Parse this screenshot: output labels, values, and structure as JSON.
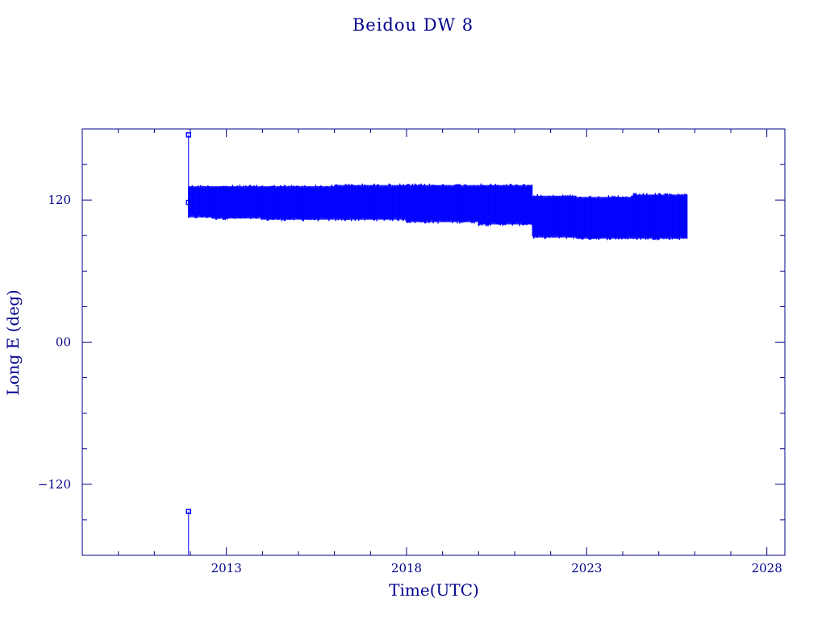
{
  "chart_data": {
    "type": "scatter",
    "title": "Beidou DW 8",
    "xlabel": "Time(UTC)",
    "ylabel": "Long E (deg)",
    "xlim": [
      2009,
      2028.5
    ],
    "ylim": [
      -180,
      180
    ],
    "xticks": [
      2013,
      2018,
      2023,
      2028
    ],
    "xtick_labels": [
      "2013",
      "2018",
      "2023",
      "2028"
    ],
    "yticks": [
      -120,
      0,
      120
    ],
    "ytick_labels": [
      "−120",
      "00",
      "120"
    ],
    "grid": false,
    "marker_color": "#0000ff",
    "series": [
      {
        "x": [
          2011.95,
          2011.95,
          2011.95
        ],
        "y": [
          -143,
          175,
          118
        ]
      }
    ],
    "bands": [
      {
        "x_start": 2011.95,
        "x_end": 2012.6,
        "y_low": 104,
        "y_high": 133
      },
      {
        "x_start": 2012.6,
        "x_end": 2014.0,
        "y_low": 103,
        "y_high": 133
      },
      {
        "x_start": 2014.0,
        "x_end": 2016.0,
        "y_low": 102,
        "y_high": 133
      },
      {
        "x_start": 2016.0,
        "x_end": 2018.0,
        "y_low": 102,
        "y_high": 134
      },
      {
        "x_start": 2018.0,
        "x_end": 2020.0,
        "y_low": 100,
        "y_high": 134
      },
      {
        "x_start": 2020.0,
        "x_end": 2021.5,
        "y_low": 98,
        "y_high": 134
      },
      {
        "x_start": 2021.5,
        "x_end": 2022.7,
        "y_low": 87,
        "y_high": 125
      },
      {
        "x_start": 2022.7,
        "x_end": 2024.3,
        "y_low": 86,
        "y_high": 124
      },
      {
        "x_start": 2024.3,
        "x_end": 2025.8,
        "y_low": 86,
        "y_high": 126
      }
    ]
  },
  "colors": {
    "axis": "#00008b",
    "marker": "#0000ff"
  }
}
